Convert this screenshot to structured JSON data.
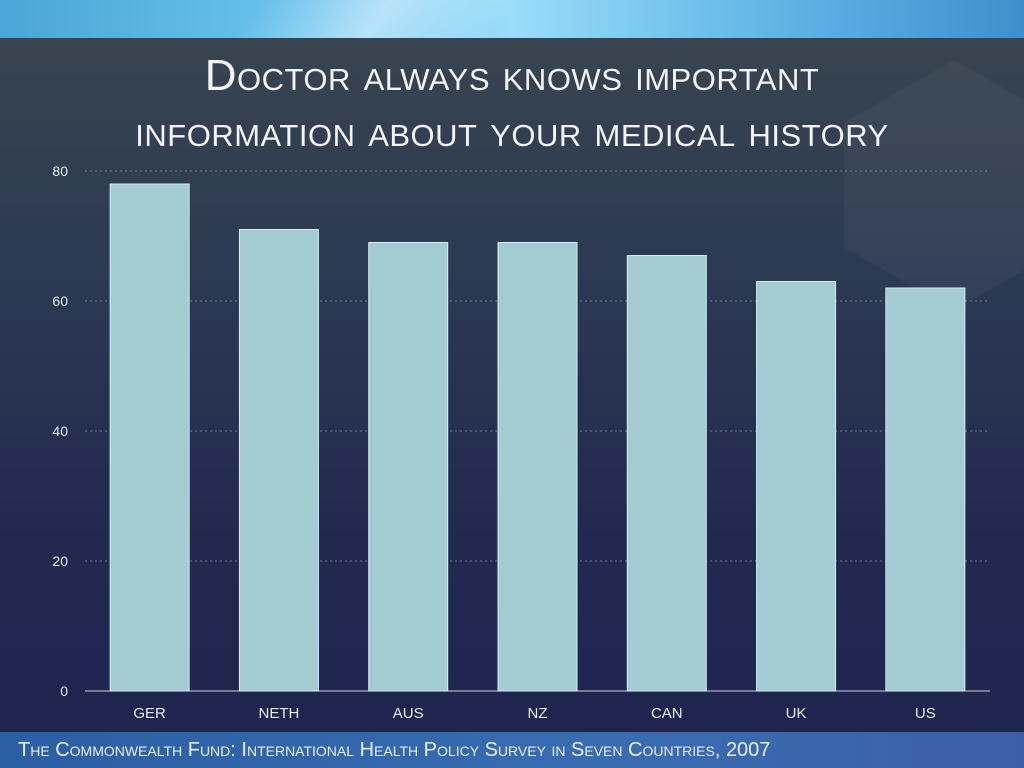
{
  "title": {
    "line1": "Doctor always knows important",
    "line2": "information about your medical history"
  },
  "footer": {
    "source": "The Commonwealth Fund: International Health Policy Survey in Seven Countries, 2007"
  },
  "colors": {
    "bar_fill": "#a3cbd2",
    "grid": "#6b7f8c",
    "axis_text": "#e6ecef"
  },
  "chart_data": {
    "type": "bar",
    "title": "Doctor always knows important information about your medical history",
    "xlabel": "",
    "ylabel": "",
    "categories": [
      "GER",
      "NETH",
      "AUS",
      "NZ",
      "CAN",
      "UK",
      "US"
    ],
    "values": [
      78,
      71,
      69,
      69,
      67,
      63,
      62
    ],
    "ylim": [
      0,
      80
    ],
    "yticks": [
      0,
      20,
      40,
      60,
      80
    ],
    "grid": true,
    "legend": "none"
  }
}
